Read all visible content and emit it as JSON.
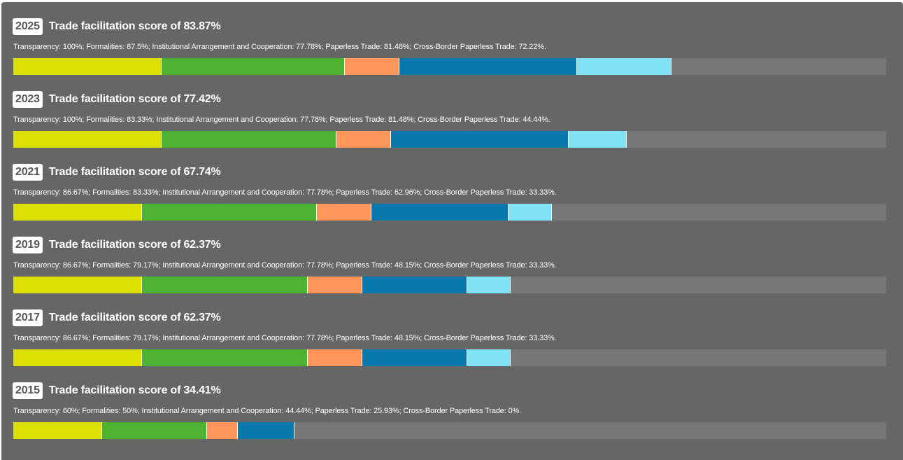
{
  "chart_data": {
    "type": "bar",
    "categories": [
      "Transparency",
      "Formalities",
      "Institutional Arrangement and Cooperation",
      "Paperless Trade",
      "Cross-Border Paperless Trade"
    ],
    "colors": [
      "#dde000",
      "#4db331",
      "#ff965a",
      "#0978ad",
      "#80e2f5"
    ],
    "track_color": "#777777",
    "entries": [
      {
        "year": "2025",
        "title": "Trade facilitation score of 83.87%",
        "description": "Transparency: 100%; Formalities: 87.5%; Institutional Arrangement and Cooperation: 77.78%; Paperless Trade: 81.48%; Cross-Border Paperless Trade: 72.22%.",
        "values": [
          100,
          87.5,
          77.78,
          81.48,
          72.22
        ]
      },
      {
        "year": "2023",
        "title": "Trade facilitation score of 77.42%",
        "description": "Transparency: 100%; Formalities: 83.33%; Institutional Arrangement and Cooperation: 77.78%; Paperless Trade: 81.48%; Cross-Border Paperless Trade: 44.44%.",
        "values": [
          100,
          83.33,
          77.78,
          81.48,
          44.44
        ]
      },
      {
        "year": "2021",
        "title": "Trade facilitation score of 67.74%",
        "description": "Transparency: 86.67%; Formalities: 83.33%; Institutional Arrangement and Cooperation: 77.78%; Paperless Trade: 62.96%; Cross-Border Paperless Trade: 33.33%.",
        "values": [
          86.67,
          83.33,
          77.78,
          62.96,
          33.33
        ]
      },
      {
        "year": "2019",
        "title": "Trade facilitation score of 62.37%",
        "description": "Transparency: 86.67%; Formalities: 79.17%; Institutional Arrangement and Cooperation: 77.78%; Paperless Trade: 48.15%; Cross-Border Paperless Trade: 33.33%.",
        "values": [
          86.67,
          79.17,
          77.78,
          48.15,
          33.33
        ]
      },
      {
        "year": "2017",
        "title": "Trade facilitation score of 62.37%",
        "description": "Transparency: 86.67%; Formalities: 79.17%; Institutional Arrangement and Cooperation: 77.78%; Paperless Trade: 48.15%; Cross-Border Paperless Trade: 33.33%.",
        "values": [
          86.67,
          79.17,
          77.78,
          48.15,
          33.33
        ]
      },
      {
        "year": "2015",
        "title": "Trade facilitation score of 34.41%",
        "description": "Transparency: 60%; Formalities: 50%; Institutional Arrangement and Cooperation: 44.44%; Paperless Trade: 25.93%; Cross-Border Paperless Trade: 0%.",
        "values": [
          60,
          50,
          44.44,
          25.93,
          0
        ]
      }
    ]
  }
}
